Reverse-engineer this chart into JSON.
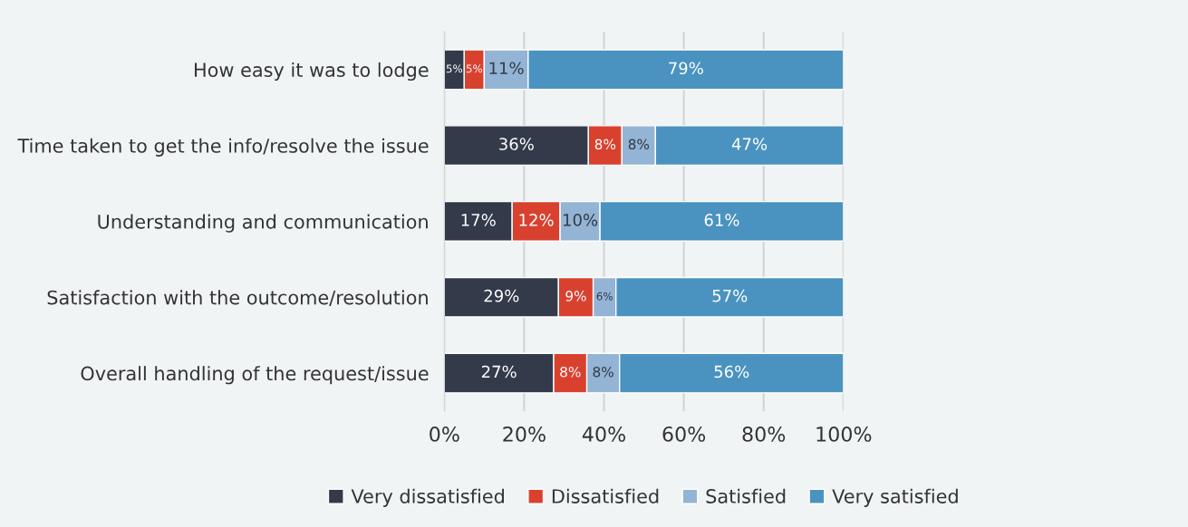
{
  "chart_data": {
    "type": "bar",
    "orientation": "horizontal",
    "stacked": true,
    "categories": [
      "How easy it was to lodge",
      "Time taken to get the info/resolve the issue",
      "Understanding and communication",
      "Satisfaction with the outcome/resolution",
      "Overall handling of the request/issue"
    ],
    "series": [
      {
        "name": "Very dissatisfied",
        "color": "#333a4a",
        "values": [
          5,
          36.1,
          17,
          28.6,
          27.4
        ],
        "value_labels": [
          "5%",
          "36%",
          "17%",
          "29%",
          "27%"
        ]
      },
      {
        "name": "Dissatisfied",
        "color": "#d9412f",
        "values": [
          5,
          8.4,
          12,
          8.7,
          8.3
        ],
        "value_labels": [
          "5%",
          "8%",
          "12%",
          "9%",
          "8%"
        ]
      },
      {
        "name": "Satisfied",
        "color": "#93b4d4",
        "values": [
          11,
          8.4,
          10,
          5.7,
          8.2
        ],
        "value_labels": [
          "11%",
          "8%",
          "10%",
          "6%",
          "8%"
        ]
      },
      {
        "name": "Very satisfied",
        "color": "#4a93c0",
        "values": [
          79,
          47.1,
          61,
          57,
          56.1
        ],
        "value_labels": [
          "79%",
          "47%",
          "61%",
          "57%",
          "56%"
        ]
      }
    ],
    "xlim": [
      0,
      100
    ],
    "xticks": [
      {
        "value": 0,
        "label": "0%"
      },
      {
        "value": 20,
        "label": "20%"
      },
      {
        "value": 40,
        "label": "40%"
      },
      {
        "value": 60,
        "label": "60%"
      },
      {
        "value": 80,
        "label": "80%"
      },
      {
        "value": 100,
        "label": "100%"
      }
    ],
    "grid": "x",
    "legend": "bottom"
  }
}
